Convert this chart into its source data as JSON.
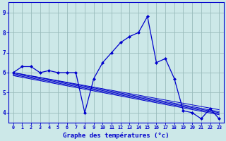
{
  "main_x": [
    0,
    1,
    2,
    3,
    4,
    5,
    6,
    7,
    8,
    9,
    10,
    11,
    12,
    13,
    14,
    15,
    16,
    17,
    18,
    19,
    20,
    21,
    22,
    23
  ],
  "main_y": [
    6.0,
    6.3,
    6.3,
    6.0,
    6.1,
    6.0,
    6.0,
    6.0,
    4.0,
    5.7,
    6.5,
    7.0,
    7.5,
    7.8,
    8.0,
    8.8,
    6.5,
    6.7,
    5.7,
    4.1,
    4.0,
    3.7,
    4.2,
    3.7
  ],
  "flat_lines": [
    [
      6.0,
      4.15
    ],
    [
      6.0,
      4.05
    ],
    [
      5.95,
      4.0
    ],
    [
      5.9,
      3.95
    ],
    [
      5.85,
      3.9
    ]
  ],
  "line_color": "#0000cc",
  "bg_color": "#cce8e8",
  "grid_color": "#99bbbb",
  "xlabel": "Graphe des températures (°c)",
  "xlim": [
    -0.5,
    23.5
  ],
  "ylim": [
    3.5,
    9.5
  ],
  "yticks": [
    4,
    5,
    6,
    7,
    8,
    9
  ],
  "xticks": [
    0,
    1,
    2,
    3,
    4,
    5,
    6,
    7,
    8,
    9,
    10,
    11,
    12,
    13,
    14,
    15,
    16,
    17,
    18,
    19,
    20,
    21,
    22,
    23
  ]
}
